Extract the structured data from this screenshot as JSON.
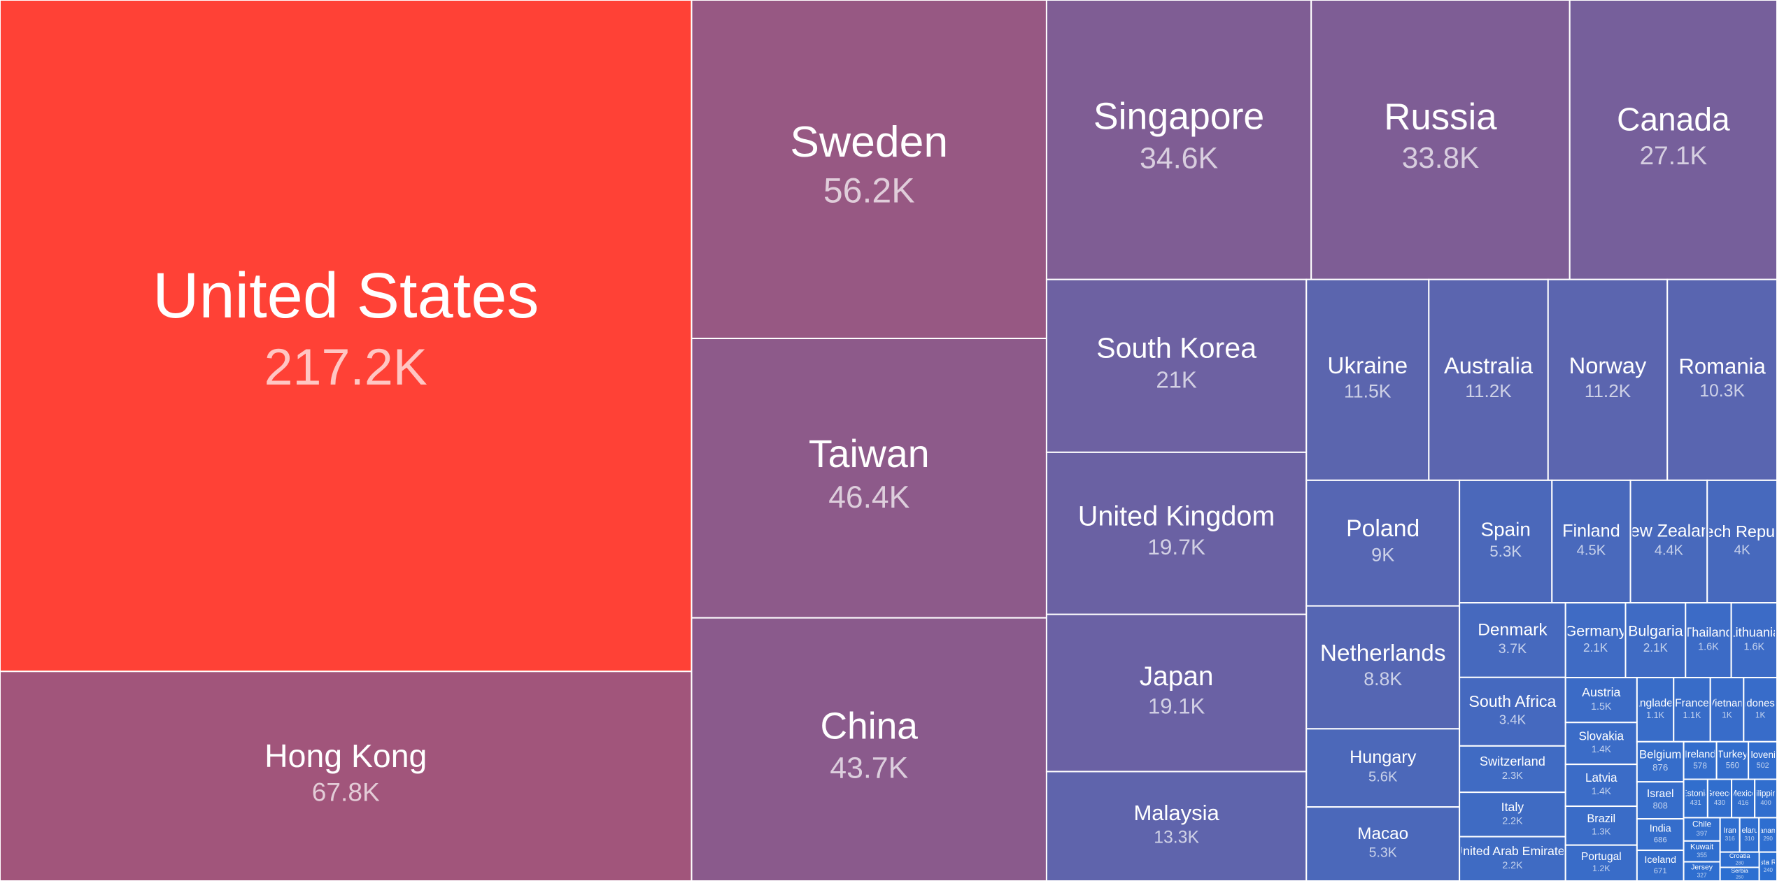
{
  "chart_data": {
    "type": "treemap",
    "categories": [
      "United States",
      "Hong Kong",
      "Sweden",
      "Taiwan",
      "China",
      "Singapore",
      "Russia",
      "Canada",
      "South Korea",
      "United Kingdom",
      "Japan",
      "Malaysia",
      "Ukraine",
      "Australia",
      "Norway",
      "Romania",
      "Poland",
      "Netherlands",
      "Hungary",
      "Macao",
      "Spain",
      "Finland",
      "New Zealand",
      "Czech Republic",
      "Denmark",
      "South Africa",
      "Switzerland",
      "Italy",
      "United Arab Emirates",
      "Germany",
      "Bulgaria",
      "Thailand",
      "Lithuania",
      "Austria",
      "Slovakia",
      "Latvia",
      "Brazil",
      "Portugal",
      "Bangladesh",
      "France",
      "Vietnam",
      "Indonesia",
      "Belgium",
      "Israel",
      "India",
      "Iceland",
      "Ireland",
      "Turkey",
      "Slovenia",
      "Estonia",
      "Greece",
      "Mexico",
      "Philippines",
      "Chile",
      "Kuwait",
      "Jersey",
      "Iran",
      "Belarus",
      "Panama",
      "Croatia",
      "Serbia",
      "Costa Rica"
    ],
    "values": [
      217200,
      67800,
      56200,
      46400,
      43700,
      34600,
      33800,
      27100,
      21000,
      19700,
      19100,
      13300,
      11500,
      11200,
      11200,
      10300,
      9000,
      8800,
      5600,
      5300,
      5300,
      4500,
      4400,
      4000,
      3700,
      3400,
      2300,
      2200,
      2200,
      2100,
      2100,
      1600,
      1600,
      1500,
      1400,
      1400,
      1300,
      1200,
      1100,
      1100,
      1000,
      1000,
      876,
      808,
      686,
      671,
      578,
      560,
      502,
      431,
      430,
      416,
      400,
      397,
      355,
      327,
      316,
      310,
      290,
      280,
      250,
      240
    ],
    "value_labels": [
      "217.2K",
      "67.8K",
      "56.2K",
      "46.4K",
      "43.7K",
      "34.6K",
      "33.8K",
      "27.1K",
      "21K",
      "19.7K",
      "19.1K",
      "13.3K",
      "11.5K",
      "11.2K",
      "11.2K",
      "10.3K",
      "9K",
      "8.8K",
      "5.6K",
      "5.3K",
      "5.3K",
      "4.5K",
      "4.4K",
      "4K",
      "3.7K",
      "3.4K",
      "2.3K",
      "2.2K",
      "2.2K",
      "2.1K",
      "2.1K",
      "1.6K",
      "1.6K",
      "1.5K",
      "1.4K",
      "1.4K",
      "1.3K",
      "1.2K",
      "1.1K",
      "1.1K",
      "1K",
      "1K",
      "876",
      "808",
      "686",
      "671",
      "578",
      "560",
      "502",
      "431",
      "430",
      "416",
      "400",
      "397",
      "355",
      "327",
      "316",
      "310",
      "290",
      "280",
      "250",
      "240"
    ],
    "color_range": [
      "#2b6fd2",
      "#ff4136"
    ],
    "color_scale": "sqrt"
  }
}
